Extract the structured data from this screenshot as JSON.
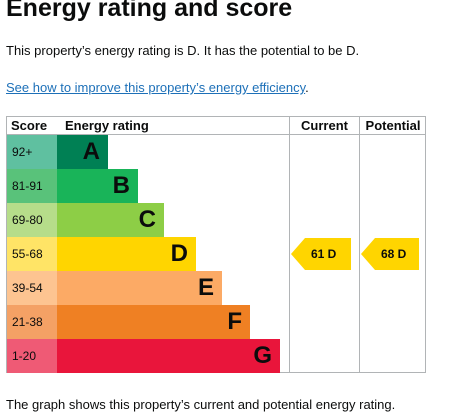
{
  "page": {
    "heading": "Energy rating and score",
    "intro": "This property’s energy rating is D. It has the potential to be D.",
    "link_text": "See how to improve this property’s energy efficiency",
    "link_suffix": ".",
    "footer": "The graph shows this property’s current and potential energy rating."
  },
  "chart": {
    "headers": {
      "score": "Score",
      "rating": "Energy rating",
      "current": "Current",
      "potential": "Potential"
    },
    "bands": [
      {
        "score": "92+",
        "letter": "A",
        "color": "#008054",
        "light": "#5fc0a0",
        "fill": 0.22
      },
      {
        "score": "81-91",
        "letter": "B",
        "color": "#19b459",
        "light": "#59c27a",
        "fill": 0.35
      },
      {
        "score": "69-80",
        "letter": "C",
        "color": "#8dce46",
        "light": "#b6dd8a",
        "fill": 0.46
      },
      {
        "score": "55-68",
        "letter": "D",
        "color": "#ffd500",
        "light": "#ffe466",
        "fill": 0.6
      },
      {
        "score": "39-54",
        "letter": "E",
        "color": "#fcaa65",
        "light": "#fdc491",
        "fill": 0.71
      },
      {
        "score": "21-38",
        "letter": "F",
        "color": "#ef8023",
        "light": "#f4a165",
        "fill": 0.83
      },
      {
        "score": "1-20",
        "letter": "G",
        "color": "#e9153b",
        "light": "#ef5a75",
        "fill": 0.96
      }
    ],
    "current": {
      "value": 61,
      "letter": "D",
      "label": "61 D",
      "color": "#ffd500"
    },
    "potential": {
      "value": 68,
      "letter": "D",
      "label": "68 D",
      "color": "#ffd500"
    }
  }
}
